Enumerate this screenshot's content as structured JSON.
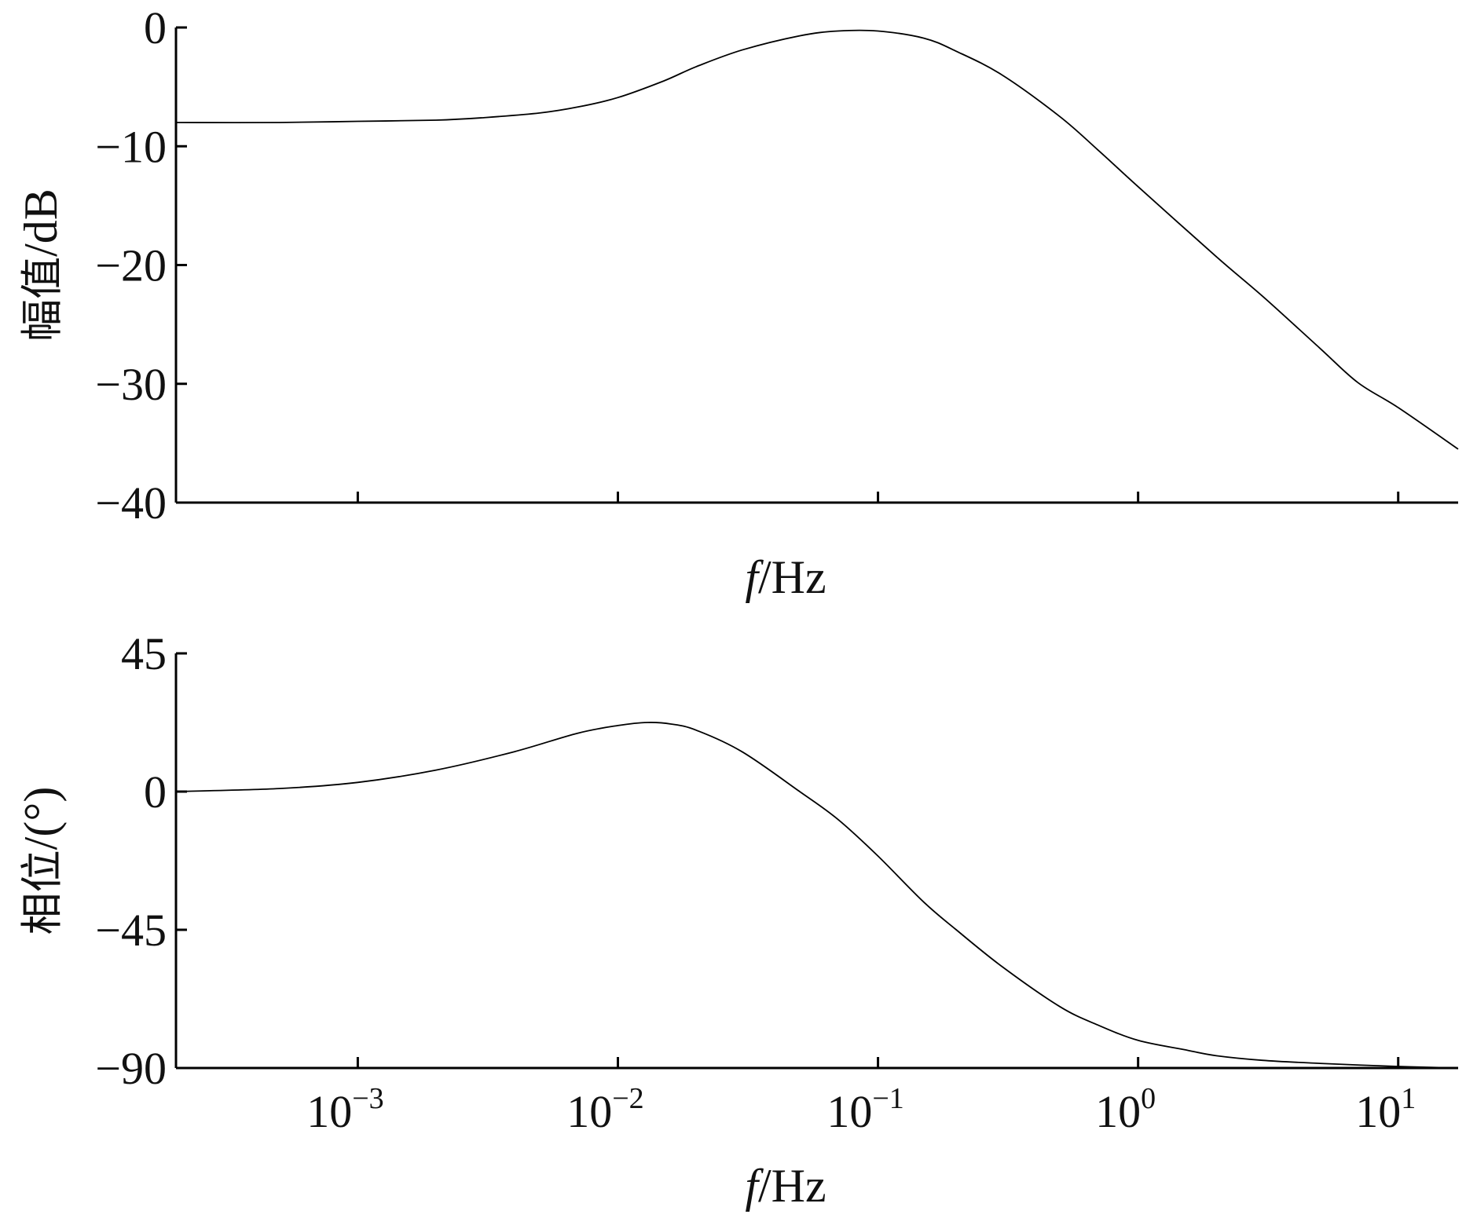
{
  "chart_data": [
    {
      "type": "line",
      "xscale": "log",
      "xlim": [
        0.0002,
        17
      ],
      "ylim": [
        -40,
        0
      ],
      "yticks": [
        0,
        -10,
        -20,
        -30,
        -40
      ],
      "ytick_labels": [
        "0",
        "−10",
        "−20",
        "−30",
        "−40"
      ],
      "xticks": [
        0.001,
        0.01,
        0.1,
        1,
        10
      ],
      "xtick_labels": [],
      "xlabel": "f/Hz",
      "xlabel_italic": "f",
      "xlabel_rest": "/Hz",
      "ylabel": "幅值/dB",
      "ylabel_cjk": "幅值",
      "ylabel_rest": "/dB",
      "series": [
        {
          "x": [
            0.0002,
            0.0005,
            0.001,
            0.002,
            0.003,
            0.005,
            0.007,
            0.01,
            0.015,
            0.02,
            0.03,
            0.05,
            0.07,
            0.1,
            0.15,
            0.2,
            0.3,
            0.5,
            0.7,
            1,
            2,
            3,
            5,
            7,
            10,
            17
          ],
          "y": [
            -8.0,
            -8.0,
            -7.9,
            -7.8,
            -7.6,
            -7.2,
            -6.7,
            -5.9,
            -4.5,
            -3.3,
            -1.9,
            -0.7,
            -0.3,
            -0.3,
            -0.9,
            -2.0,
            -4.0,
            -7.5,
            -10.3,
            -13.4,
            -19.3,
            -22.6,
            -27.0,
            -29.9,
            -32.0,
            -35.5
          ]
        }
      ]
    },
    {
      "type": "line",
      "xscale": "log",
      "xlim": [
        0.0002,
        17
      ],
      "ylim": [
        -90,
        45
      ],
      "yticks": [
        45,
        0,
        -45,
        -90
      ],
      "ytick_labels": [
        "45",
        "0",
        "−45",
        "−90"
      ],
      "xticks": [
        0.001,
        0.01,
        0.1,
        1,
        10
      ],
      "xtick_base": "10",
      "xtick_exponents": [
        "−3",
        "−2",
        "−1",
        "0",
        "1"
      ],
      "xlabel": "f/Hz",
      "xlabel_italic": "f",
      "xlabel_rest": "/Hz",
      "ylabel": "相位/(°)",
      "ylabel_cjk": "相位",
      "ylabel_rest": "/(°)",
      "series": [
        {
          "x": [
            0.0002,
            0.0005,
            0.001,
            0.002,
            0.004,
            0.007,
            0.01,
            0.013,
            0.016,
            0.02,
            0.03,
            0.05,
            0.07,
            0.1,
            0.15,
            0.2,
            0.3,
            0.5,
            0.7,
            1,
            1.5,
            2,
            3,
            5,
            10,
            17
          ],
          "y": [
            0,
            1,
            3,
            7,
            13,
            19,
            21.5,
            22.5,
            22,
            20,
            13,
            0,
            -9,
            -21,
            -36,
            -45,
            -57,
            -70,
            -76,
            -81,
            -84,
            -86,
            -87.5,
            -88.5,
            -89.5,
            -90
          ]
        }
      ]
    }
  ]
}
